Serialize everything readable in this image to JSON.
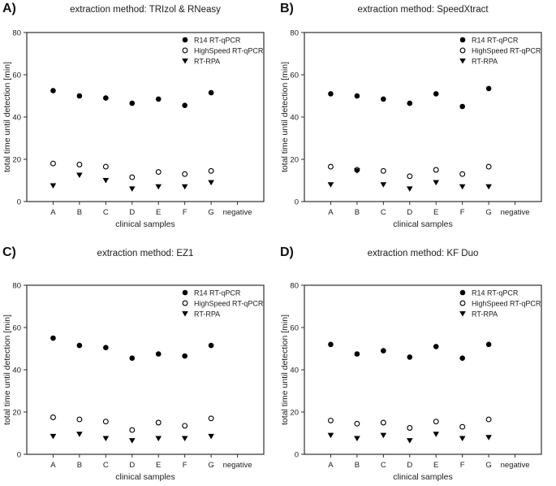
{
  "colors": {
    "marker": "#000000",
    "axis": "#2e2e2e",
    "text": "#1c1c1c",
    "background": "#ffffff"
  },
  "chart_data": [
    {
      "type": "scatter",
      "panel_label": "A)",
      "title": "extraction method: TRIzol & RNeasy",
      "xlabel": "clinical samples",
      "ylabel": "total time until detection [min]",
      "categories": [
        "A",
        "B",
        "C",
        "D",
        "E",
        "F",
        "G",
        "negative"
      ],
      "ylim": [
        0,
        80
      ],
      "yticks": [
        0,
        20,
        40,
        60,
        80
      ],
      "grid": false,
      "legend_position": "top-right",
      "series": [
        {
          "name": "R14 RT-qPCR",
          "marker": "filled-circle",
          "values": [
            52.5,
            50,
            49,
            46.5,
            48.5,
            45.5,
            51.5,
            null
          ]
        },
        {
          "name": "HighSpeed RT-qPCR",
          "marker": "open-circle",
          "values": [
            18,
            17.5,
            16.5,
            11.5,
            14,
            13,
            14.5,
            null
          ]
        },
        {
          "name": "RT-RPA",
          "marker": "filled-triangle-down",
          "values": [
            7.5,
            12.5,
            10,
            6,
            7,
            7,
            9,
            null
          ]
        }
      ]
    },
    {
      "type": "scatter",
      "panel_label": "B)",
      "title": "extraction method: SpeedXtract",
      "xlabel": "clinical samples",
      "ylabel": "total time until detection [min]",
      "categories": [
        "A",
        "B",
        "C",
        "D",
        "E",
        "F",
        "G",
        "negative"
      ],
      "ylim": [
        0,
        80
      ],
      "yticks": [
        0,
        20,
        40,
        60,
        80
      ],
      "grid": false,
      "legend_position": "top-right",
      "series": [
        {
          "name": "R14 RT-qPCR",
          "marker": "filled-circle",
          "values": [
            51,
            50,
            48.5,
            46.5,
            51,
            45,
            53.5,
            null
          ]
        },
        {
          "name": "HighSpeed RT-qPCR",
          "marker": "open-circle",
          "values": [
            16.5,
            15,
            14.5,
            12,
            15,
            13,
            16.5,
            null
          ]
        },
        {
          "name": "RT-RPA",
          "marker": "filled-triangle-down",
          "values": [
            8,
            14.5,
            8,
            6,
            9,
            7,
            7,
            null
          ]
        }
      ]
    },
    {
      "type": "scatter",
      "panel_label": "C)",
      "title": "extraction method: EZ1",
      "xlabel": "clinical samples",
      "ylabel": "total time until detection [min]",
      "categories": [
        "A",
        "B",
        "C",
        "D",
        "E",
        "F",
        "G",
        "negative"
      ],
      "ylim": [
        0,
        80
      ],
      "yticks": [
        0,
        20,
        40,
        60,
        80
      ],
      "grid": false,
      "legend_position": "top-right",
      "series": [
        {
          "name": "R14 RT-qPCR",
          "marker": "filled-circle",
          "values": [
            55,
            51.5,
            50.5,
            45.5,
            47.5,
            46.5,
            51.5,
            null
          ]
        },
        {
          "name": "HighSpeed RT-qPCR",
          "marker": "open-circle",
          "values": [
            17.5,
            16.5,
            15.5,
            11.5,
            15,
            13.5,
            17,
            null
          ]
        },
        {
          "name": "RT-RPA",
          "marker": "filled-triangle-down",
          "values": [
            8.5,
            9.5,
            7.5,
            6.5,
            7.5,
            7.5,
            8.5,
            null
          ]
        }
      ]
    },
    {
      "type": "scatter",
      "panel_label": "D)",
      "title": "extraction method: KF Duo",
      "xlabel": "clinical samples",
      "ylabel": "total time until detection [min]",
      "categories": [
        "A",
        "B",
        "C",
        "D",
        "E",
        "F",
        "G",
        "negative"
      ],
      "ylim": [
        0,
        80
      ],
      "yticks": [
        0,
        20,
        40,
        60,
        80
      ],
      "grid": false,
      "legend_position": "top-right",
      "series": [
        {
          "name": "R14 RT-qPCR",
          "marker": "filled-circle",
          "values": [
            52,
            47.5,
            49,
            46,
            51,
            45.5,
            52,
            null
          ]
        },
        {
          "name": "HighSpeed RT-qPCR",
          "marker": "open-circle",
          "values": [
            16,
            14.5,
            15,
            12.5,
            15.5,
            13,
            16.5,
            null
          ]
        },
        {
          "name": "RT-RPA",
          "marker": "filled-triangle-down",
          "values": [
            9,
            7.5,
            9,
            6.5,
            9.5,
            7.5,
            8,
            null
          ]
        }
      ]
    }
  ]
}
